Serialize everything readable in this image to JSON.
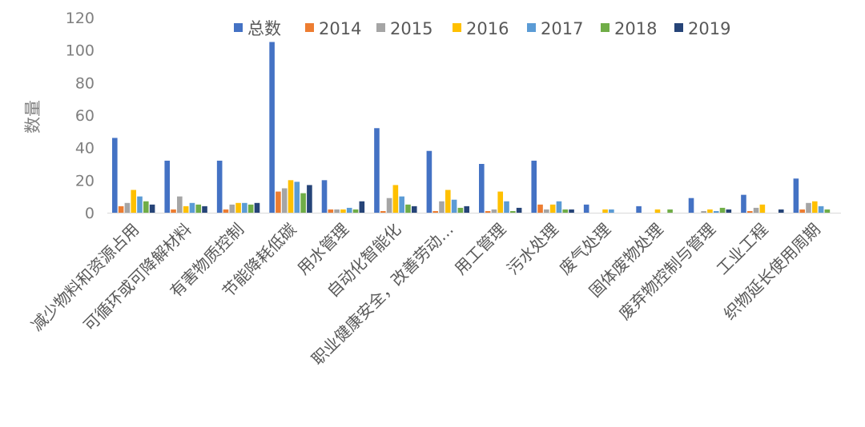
{
  "chart_data": {
    "type": "bar",
    "title": "",
    "xlabel": "",
    "ylabel": "数量",
    "ylim": [
      0,
      120
    ],
    "yticks": [
      0,
      20,
      40,
      60,
      80,
      100,
      120
    ],
    "grid": false,
    "legend_position": "top",
    "categories": [
      "减少物料和资源占用",
      "可循环或可降解材料",
      "有害物质控制",
      "节能降耗低碳",
      "用水管理",
      "自动化智能化",
      "职业健康安全，改善劳动…",
      "用工管理",
      "污水处理",
      "废气处理",
      "固体废物处理",
      "废弃物控制与管理",
      "工业工程",
      "织物延长使用周期"
    ],
    "series": [
      {
        "name": "总数",
        "color": "#4472C4",
        "values": [
          46,
          32,
          32,
          105,
          20,
          52,
          38,
          30,
          32,
          5,
          4,
          9,
          11,
          21
        ]
      },
      {
        "name": "2014",
        "color": "#ED7D31",
        "values": [
          4,
          2,
          2,
          13,
          2,
          1,
          1,
          1,
          5,
          0,
          0,
          0,
          1,
          2
        ]
      },
      {
        "name": "2015",
        "color": "#A5A5A5",
        "values": [
          6,
          10,
          5,
          15,
          2,
          9,
          7,
          2,
          2,
          0,
          0,
          1,
          3,
          6
        ]
      },
      {
        "name": "2016",
        "color": "#FFC000",
        "values": [
          14,
          4,
          6,
          20,
          2,
          17,
          14,
          13,
          5,
          2,
          2,
          2,
          5,
          7
        ]
      },
      {
        "name": "2017",
        "color": "#5B9BD5",
        "values": [
          10,
          6,
          6,
          19,
          3,
          10,
          8,
          7,
          7,
          2,
          0,
          1,
          0,
          4
        ]
      },
      {
        "name": "2018",
        "color": "#70AD47",
        "values": [
          7,
          5,
          5,
          12,
          2,
          5,
          3,
          1,
          2,
          0,
          2,
          3,
          0,
          2
        ]
      },
      {
        "name": "2019",
        "color": "#264478",
        "values": [
          5,
          4,
          6,
          17,
          7,
          4,
          4,
          3,
          2,
          0,
          0,
          2,
          2,
          0
        ]
      }
    ]
  }
}
